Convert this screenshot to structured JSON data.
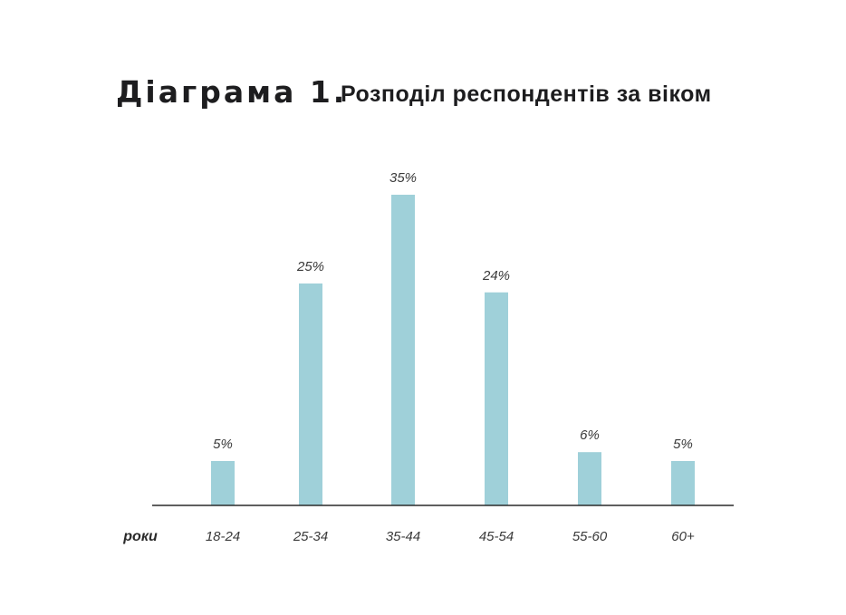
{
  "header": {
    "number_label": "Діаграма 1.",
    "title": "Розподіл респондентів за віком"
  },
  "chart_data": {
    "type": "bar",
    "title": "Розподіл респондентів за віком",
    "xlabel": "роки",
    "ylabel": "",
    "categories": [
      "18-24",
      "25-34",
      "35-44",
      "45-54",
      "55-60",
      "60+"
    ],
    "values": [
      5,
      25,
      35,
      24,
      6,
      5
    ],
    "value_labels": [
      "5%",
      "25%",
      "35%",
      "24%",
      "6%",
      "5%"
    ],
    "unit": "%",
    "ylim": [
      0,
      35
    ],
    "grid": false,
    "legend": "none",
    "bar_color": "#9fd0d9",
    "axis_color": "#2a2a2a"
  }
}
